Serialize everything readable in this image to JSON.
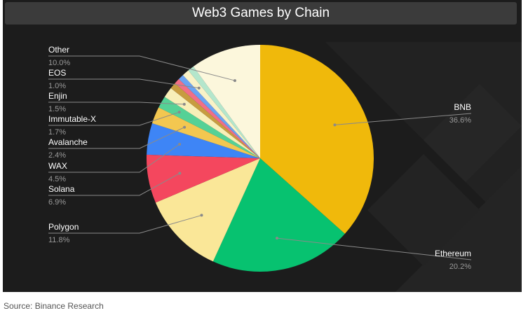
{
  "chart_data": {
    "type": "pie",
    "title": "Web3 Games by Chain",
    "slices": [
      {
        "label": "BNB",
        "value": 36.6,
        "display": "36.6%",
        "color": "#f0b90b"
      },
      {
        "label": "Ethereum",
        "value": 20.2,
        "display": "20.2%",
        "color": "#07c270"
      },
      {
        "label": "Polygon",
        "value": 11.8,
        "display": "11.8%",
        "color": "#fae798"
      },
      {
        "label": "Solana",
        "value": 6.9,
        "display": "6.9%",
        "color": "#f4475e"
      },
      {
        "label": "WAX",
        "value": 4.5,
        "display": "4.5%",
        "color": "#3e85f6"
      },
      {
        "label": "Avalanche",
        "value": 2.4,
        "display": "2.4%",
        "color": "#f3c750"
      },
      {
        "label": "Immutable-X",
        "value": 1.7,
        "display": "1.7%",
        "color": "#55d196"
      },
      {
        "label": "Enjin",
        "value": 1.5,
        "display": "1.5%",
        "color": "#f8efb8"
      },
      {
        "label": "",
        "value": 0.9,
        "display": "",
        "color": "#c79c40"
      },
      {
        "label": "",
        "value": 0.8,
        "display": "",
        "color": "#f26f86"
      },
      {
        "label": "",
        "value": 0.8,
        "display": "",
        "color": "#6aa3f2"
      },
      {
        "label": "EOS",
        "value": 1.0,
        "display": "1.0%",
        "color": "#f9f2c7"
      },
      {
        "label": "",
        "value": 0.9,
        "display": "",
        "color": "#b4e6cc"
      },
      {
        "label": "Other",
        "value": 10.0,
        "display": "10.0%",
        "color": "#fcf7dc"
      }
    ],
    "legend": "none",
    "grid": false
  },
  "footer": {
    "source": "Source: Binance Research"
  },
  "colors": {
    "background": "#1c1c1c",
    "title_bar": "#3b3b3b",
    "label_text": "#ffffff",
    "percent_text": "#9a9a9a",
    "leader_line": "#8a8a8a"
  }
}
